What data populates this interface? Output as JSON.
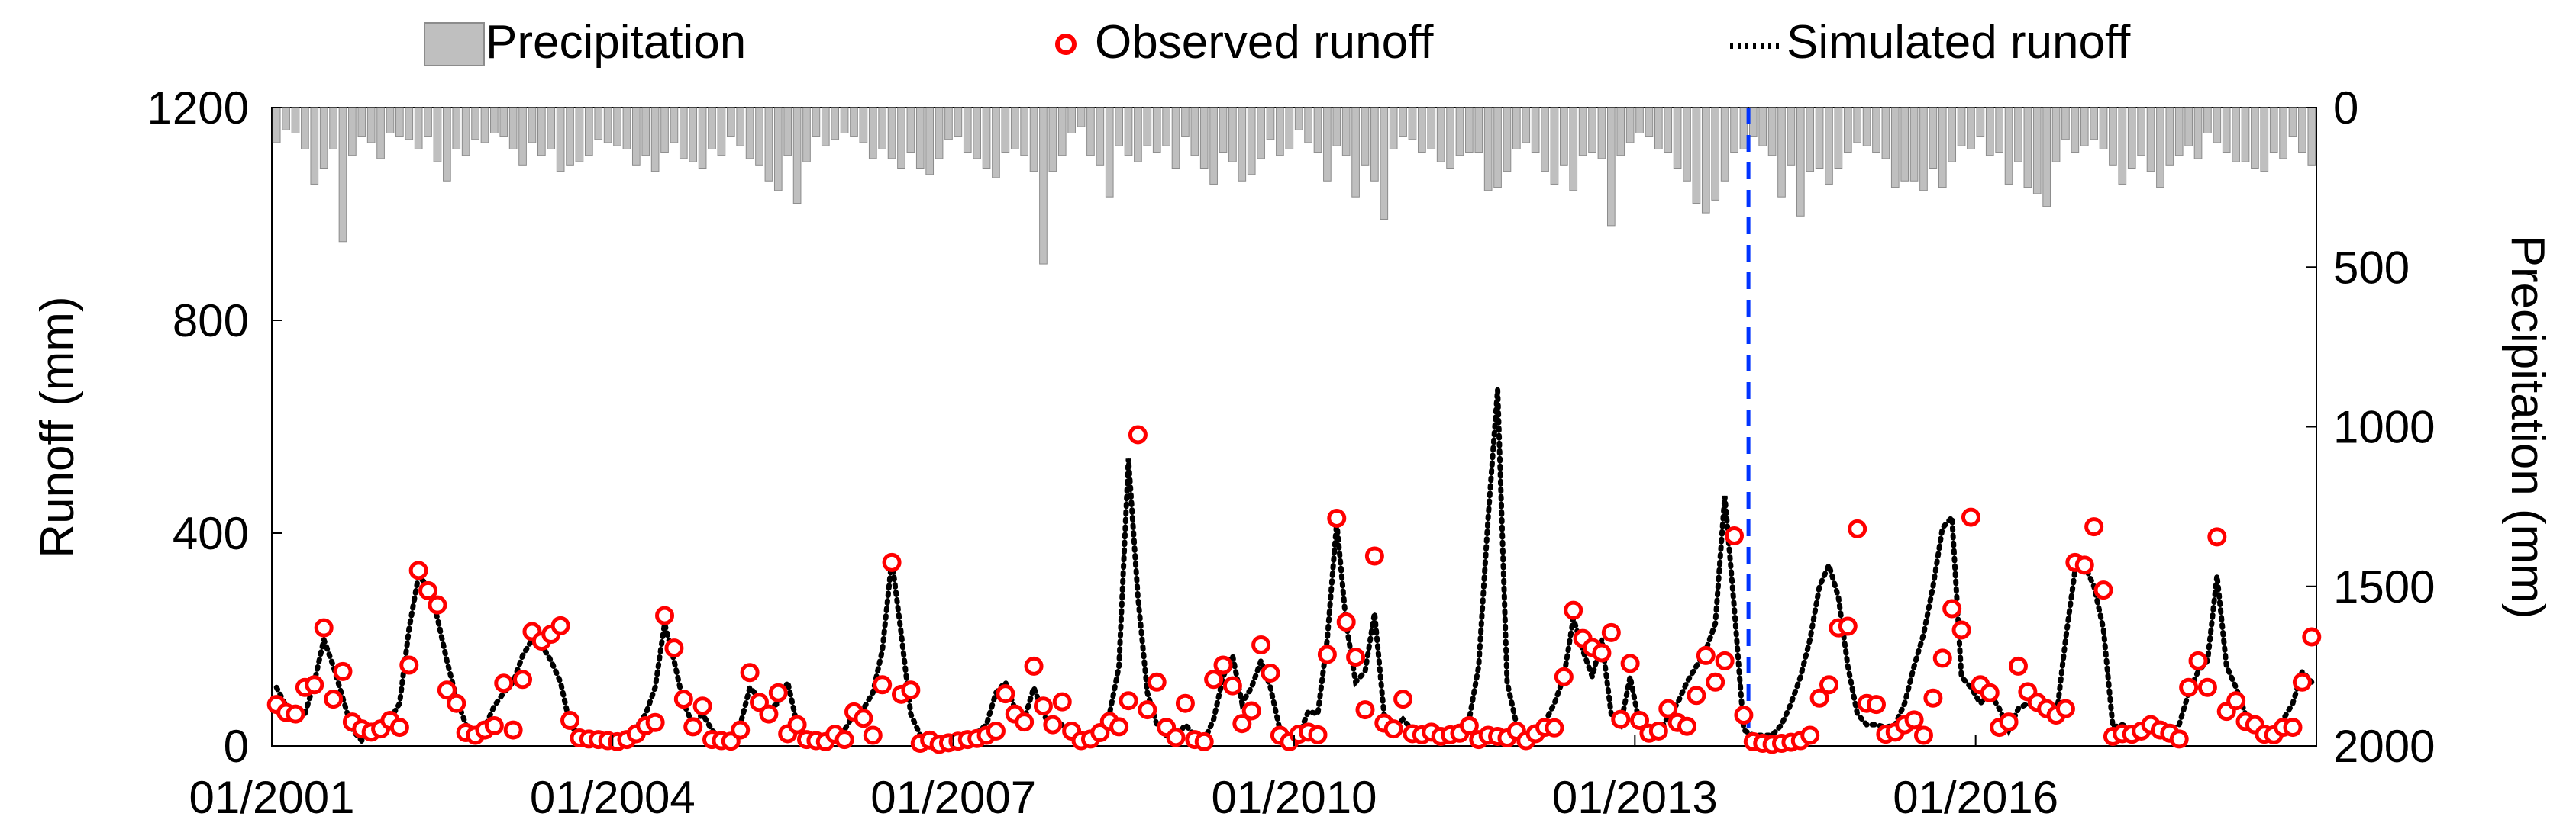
{
  "chart_data": {
    "type": "bar+line+scatter",
    "title": "",
    "xlabel": "",
    "ylabel_left": "Runoff (mm)",
    "ylabel_right": "Precipitation (mm)",
    "ylim_left": [
      0,
      1200
    ],
    "ylim_right_inverted": [
      0,
      2000
    ],
    "yticks_left": [
      "0",
      "400",
      "800",
      "1200"
    ],
    "yticks_right": [
      "0",
      "500",
      "1000",
      "1500",
      "2000"
    ],
    "xtick_labels": [
      "01/2001",
      "01/2004",
      "01/2007",
      "01/2010",
      "01/2013",
      "01/2016"
    ],
    "time_start": "01/2001",
    "time_end": "12/2018",
    "split_marker": "01/2014",
    "legend": {
      "placement": "top-center",
      "precipitation_label": "Precipitation",
      "observed_label": "Observed runoff",
      "simulated_label": "Simulated runoff"
    },
    "colors": {
      "precipitation": "#bfbfbf",
      "observed": "#ff0000",
      "simulated": "#000000",
      "split_line": "#0033ff"
    },
    "series": [
      {
        "name": "Precipitation",
        "type": "bar",
        "axis": "right",
        "values": [
          110,
          70,
          80,
          130,
          240,
          190,
          130,
          420,
          150,
          90,
          110,
          160,
          80,
          90,
          100,
          130,
          90,
          170,
          230,
          130,
          150,
          100,
          110,
          80,
          90,
          130,
          180,
          110,
          150,
          130,
          200,
          180,
          170,
          150,
          100,
          110,
          120,
          130,
          180,
          150,
          200,
          140,
          110,
          160,
          170,
          190,
          130,
          150,
          90,
          120,
          160,
          180,
          230,
          260,
          150,
          300,
          170,
          90,
          120,
          100,
          80,
          90,
          110,
          160,
          130,
          160,
          190,
          140,
          190,
          210,
          160,
          100,
          90,
          140,
          160,
          190,
          220,
          140,
          130,
          150,
          200,
          490,
          200,
          150,
          80,
          60,
          150,
          180,
          280,
          120,
          150,
          170,
          120,
          140,
          120,
          190,
          90,
          150,
          190,
          240,
          140,
          170,
          230,
          210,
          160,
          100,
          150,
          130,
          70,
          110,
          140,
          230,
          120,
          150,
          280,
          180,
          230,
          350,
          130,
          90,
          100,
          140,
          130,
          170,
          190,
          150,
          140,
          140,
          260,
          250,
          200,
          130,
          110,
          140,
          200,
          240,
          180,
          260,
          150,
          140,
          160,
          370,
          150,
          110,
          80,
          90,
          130,
          140,
          190,
          230,
          300,
          330,
          290,
          230,
          140,
          130,
          90,
          120,
          150,
          280,
          180,
          340,
          200,
          190,
          240,
          190,
          140,
          110,
          120,
          140,
          160,
          250,
          230,
          230,
          260,
          190,
          250,
          170,
          120,
          130,
          90,
          150,
          140,
          240,
          170,
          250,
          270,
          310,
          170,
          100,
          140,
          120,
          100,
          130,
          180,
          240,
          190,
          150,
          200,
          250,
          180,
          150,
          120,
          160,
          80,
          110,
          140,
          170,
          170,
          190,
          200,
          140,
          160,
          90,
          140,
          180
        ]
      },
      {
        "name": "Observed runoff",
        "type": "scatter",
        "axis": "left",
        "values": [
          78,
          63,
          60,
          110,
          115,
          222,
          88,
          140,
          45,
          32,
          26,
          32,
          48,
          35,
          152,
          330,
          292,
          265,
          105,
          80,
          25,
          20,
          30,
          38,
          118,
          30,
          125,
          215,
          197,
          210,
          226,
          48,
          15,
          13,
          12,
          10,
          8,
          12,
          23,
          38,
          44,
          245,
          184,
          88,
          36,
          75,
          12,
          10,
          9,
          30,
          138,
          82,
          60,
          100,
          23,
          40,
          12,
          10,
          8,
          22,
          12,
          64,
          52,
          20,
          115,
          345,
          97,
          105,
          5,
          11,
          3,
          6,
          9,
          12,
          14,
          20,
          28,
          98,
          60,
          45,
          150,
          75,
          40,
          83,
          28,
          10,
          13,
          25,
          46,
          36,
          85,
          585,
          68,
          120,
          35,
          16,
          80,
          12,
          8,
          125,
          152,
          113,
          42,
          66,
          190,
          137,
          20,
          8,
          22,
          26,
          21,
          172,
          428,
          233,
          167,
          68,
          357,
          43,
          32,
          88,
          23,
          21,
          26,
          18,
          21,
          24,
          38,
          12,
          20,
          18,
          15,
          28,
          10,
          23,
          35,
          34,
          130,
          255,
          202,
          185,
          175,
          213,
          50,
          155,
          48,
          24,
          28,
          70,
          44,
          37,
          95,
          170,
          120,
          160,
          395,
          58,
          8,
          5,
          3,
          5,
          7,
          10,
          20,
          90,
          115,
          222,
          225,
          408,
          80,
          78,
          22,
          26,
          40,
          49,
          20,
          90,
          165,
          258,
          218,
          430,
          115,
          100,
          35,
          45,
          150,
          102,
          82,
          70,
          58,
          70,
          345,
          340,
          412,
          293,
          18,
          23,
          22,
          28,
          40,
          30,
          24,
          13,
          110,
          160,
          110,
          393,
          65,
          85,
          46,
          40,
          22,
          21,
          35,
          35,
          120,
          205
        ]
      },
      {
        "name": "Simulated runoff",
        "type": "line",
        "axis": "left",
        "values": [
          110,
          75,
          55,
          60,
          120,
          200,
          150,
          90,
          30,
          10,
          25,
          40,
          50,
          80,
          220,
          320,
          300,
          240,
          160,
          90,
          40,
          20,
          35,
          75,
          100,
          120,
          170,
          200,
          190,
          160,
          120,
          40,
          20,
          10,
          8,
          6,
          10,
          18,
          35,
          60,
          110,
          230,
          160,
          80,
          40,
          60,
          30,
          10,
          10,
          40,
          110,
          90,
          70,
          80,
          120,
          40,
          20,
          8,
          12,
          25,
          30,
          60,
          70,
          100,
          180,
          350,
          210,
          60,
          20,
          10,
          10,
          10,
          10,
          15,
          25,
          40,
          100,
          120,
          70,
          50,
          110,
          60,
          30,
          40,
          20,
          15,
          20,
          30,
          60,
          150,
          540,
          280,
          100,
          40,
          20,
          15,
          40,
          20,
          10,
          50,
          130,
          170,
          80,
          110,
          160,
          110,
          30,
          10,
          20,
          65,
          60,
          200,
          420,
          230,
          120,
          140,
          250,
          60,
          30,
          50,
          30,
          25,
          20,
          20,
          20,
          30,
          50,
          150,
          430,
          670,
          120,
          40,
          20,
          25,
          45,
          80,
          130,
          240,
          180,
          130,
          200,
          60,
          40,
          130,
          40,
          20,
          25,
          55,
          80,
          120,
          150,
          180,
          230,
          470,
          260,
          30,
          20,
          20,
          20,
          40,
          80,
          130,
          200,
          300,
          340,
          280,
          150,
          60,
          40,
          40,
          35,
          40,
          80,
          150,
          210,
          300,
          410,
          430,
          130,
          110,
          80,
          100,
          70,
          30,
          70,
          80,
          70,
          60,
          50,
          200,
          330,
          340,
          300,
          220,
          35,
          40,
          30,
          30,
          35,
          30,
          30,
          40,
          100,
          140,
          160,
          320,
          150,
          110,
          60,
          40,
          30,
          30,
          50,
          80,
          140,
          120
        ]
      }
    ]
  }
}
